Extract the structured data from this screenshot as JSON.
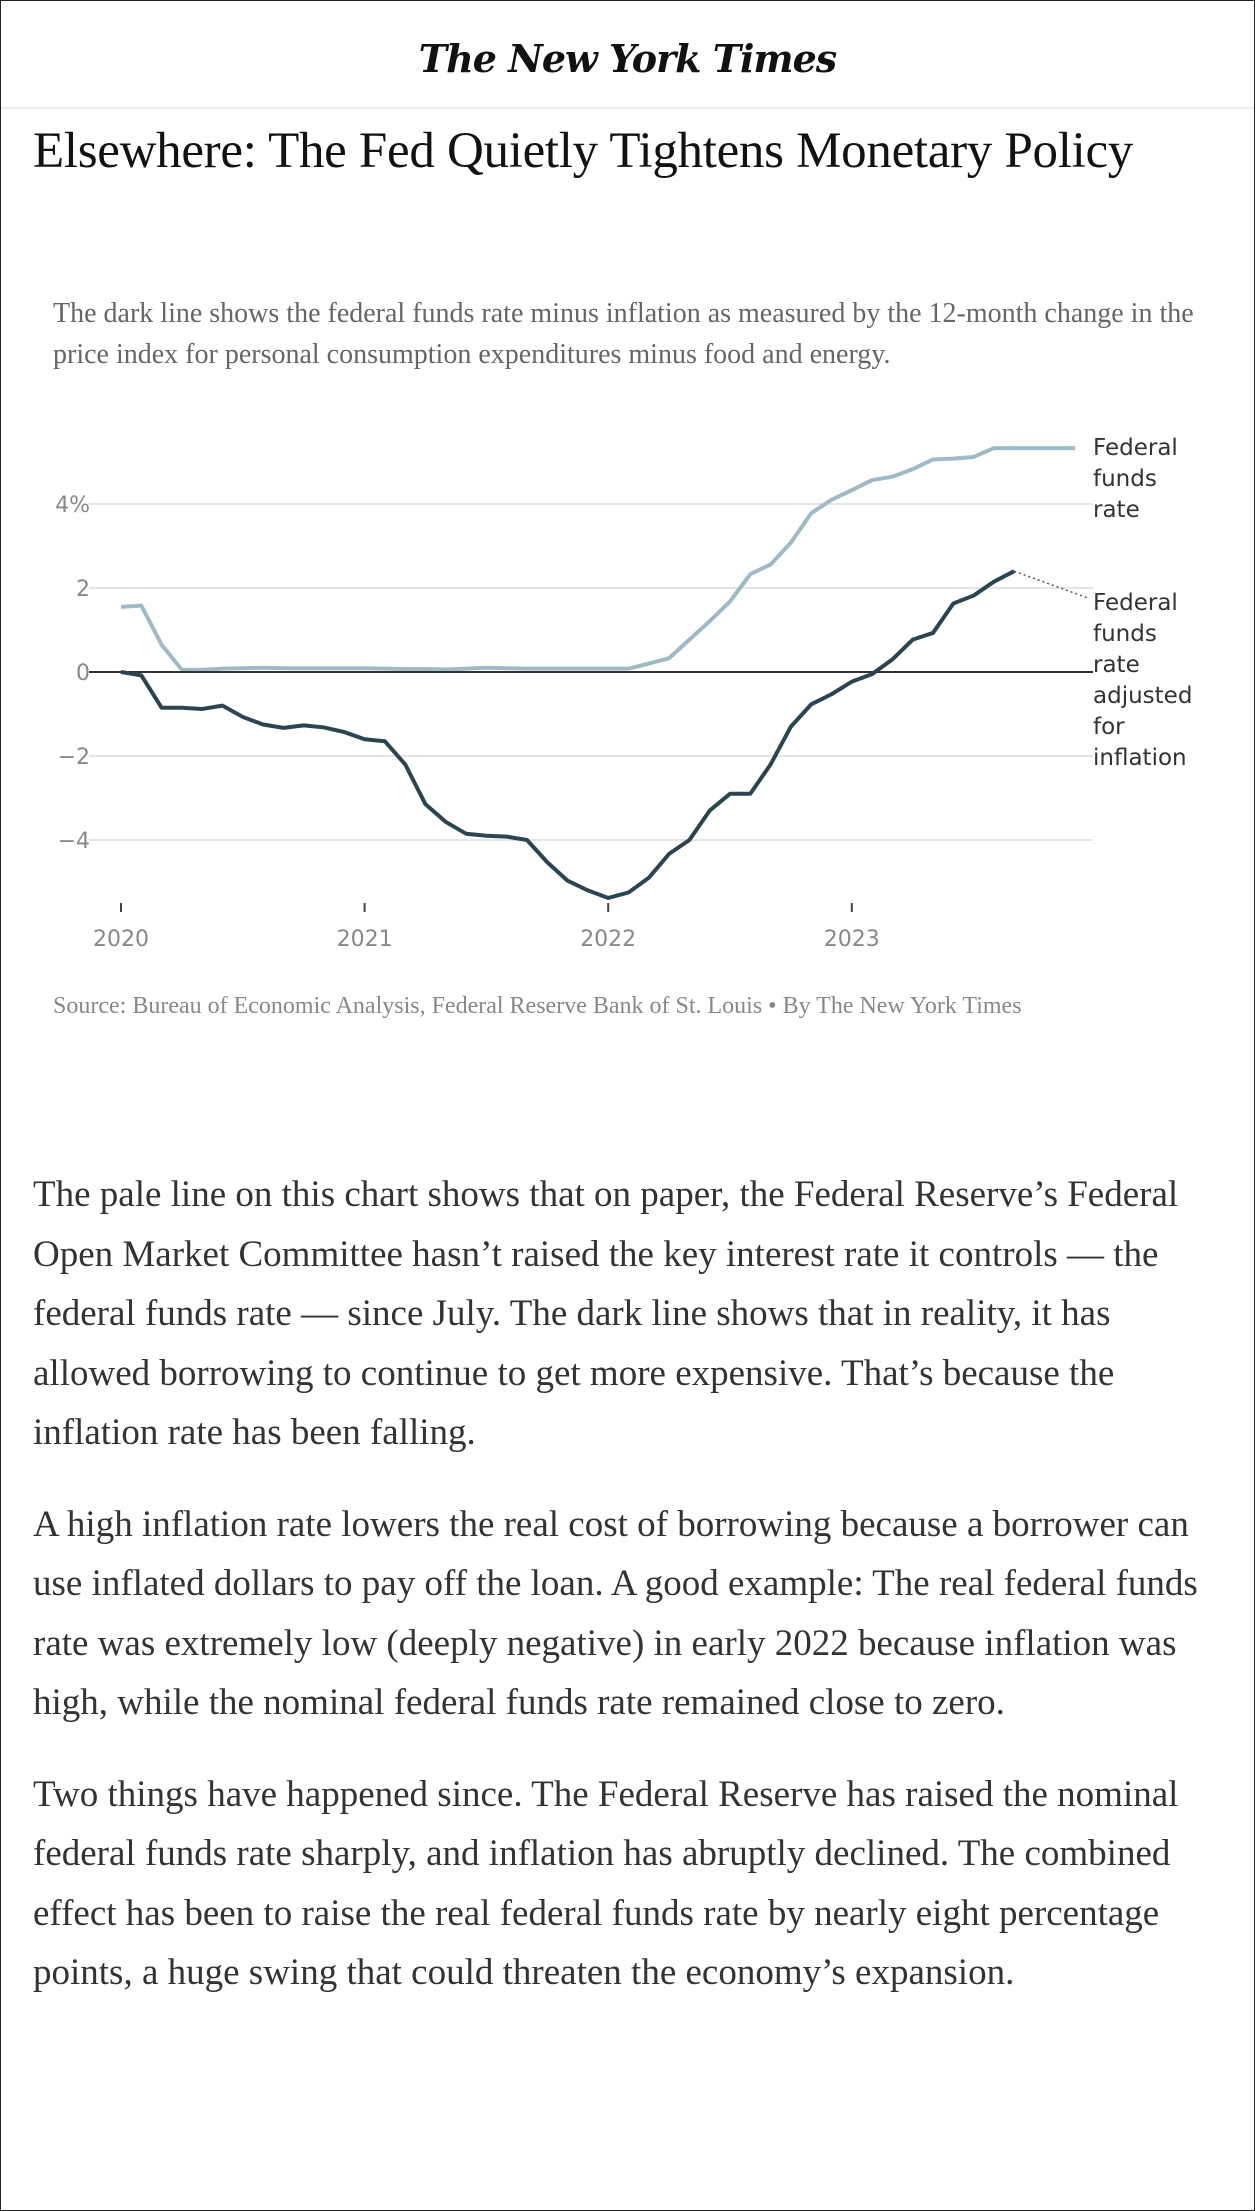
{
  "masthead": {
    "logo": "The New York Times"
  },
  "headline": "Elsewhere: The Fed Quietly Tightens Monetary Policy",
  "chart_note": "The dark line shows the federal funds rate minus inflation as measured by the 12-month change in the price index for personal consumption expenditures minus food and energy.",
  "source": "Source: Bureau of Economic Analysis, Federal Reserve Bank of St. Louis • By The New York Times",
  "article": {
    "paragraphs": [
      "The pale line on this chart shows that on paper, the Federal Reserve’s Federal Open Market Committee hasn’t raised the key interest rate it controls — the federal funds rate — since July. The dark line shows that in reality, it has allowed borrowing to continue to get more expensive. That’s because the inflation rate has been falling.",
      "A high inflation rate lowers the real cost of borrowing because a borrower can use inflated dollars to pay off the loan. A good example: The real federal funds rate was extremely low (deeply negative) in early 2022 because inflation was high, while the nominal federal funds rate remained close to zero.",
      "Two things have happened since. The Federal Reserve has raised the nominal federal funds rate sharply, and inflation has abruptly declined. The combined effect has been to raise the real federal funds rate by nearly eight percentage points, a huge swing that could threaten the economy’s expansion."
    ]
  },
  "colors": {
    "nominal": "#9fbac6",
    "real": "#2b4550",
    "zero": "#333333",
    "grid": "#e5e5e5"
  },
  "chart_data": {
    "type": "line",
    "title": "",
    "xlabel": "",
    "ylabel": "",
    "x_start": "2020-01",
    "x_step": "month",
    "x_ticks": [
      "2020",
      "2021",
      "2022",
      "2023"
    ],
    "y_ticks": [
      {
        "value": 4,
        "label": "4%"
      },
      {
        "value": 2,
        "label": "2"
      },
      {
        "value": 0,
        "label": "0"
      },
      {
        "value": -2,
        "label": "−2"
      },
      {
        "value": -4,
        "label": "−4"
      }
    ],
    "ylim": [
      -5.6,
      5.5
    ],
    "grid": true,
    "series": [
      {
        "name": "Federal funds rate",
        "label_lines": [
          "Federal",
          "funds",
          "rate"
        ],
        "values": [
          1.55,
          1.58,
          0.65,
          0.05,
          0.05,
          0.08,
          0.09,
          0.1,
          0.09,
          0.09,
          0.09,
          0.09,
          0.09,
          0.08,
          0.07,
          0.07,
          0.06,
          0.08,
          0.1,
          0.09,
          0.08,
          0.08,
          0.08,
          0.08,
          0.08,
          0.08,
          0.2,
          0.33,
          0.77,
          1.21,
          1.68,
          2.33,
          2.56,
          3.08,
          3.78,
          4.1,
          4.33,
          4.57,
          4.65,
          4.83,
          5.06,
          5.08,
          5.12,
          5.33,
          5.33,
          5.33,
          5.33,
          5.33
        ]
      },
      {
        "name": "Federal funds rate adjusted for inflation",
        "label_lines": [
          "Federal",
          "funds",
          "rate",
          "adjusted",
          "for",
          "inflation"
        ],
        "values": [
          0.0,
          -0.08,
          -0.85,
          -0.85,
          -0.88,
          -0.8,
          -1.07,
          -1.25,
          -1.33,
          -1.27,
          -1.32,
          -1.43,
          -1.6,
          -1.65,
          -2.2,
          -3.15,
          -3.57,
          -3.85,
          -3.9,
          -3.92,
          -4.0,
          -4.53,
          -4.97,
          -5.2,
          -5.38,
          -5.25,
          -4.9,
          -4.33,
          -4.0,
          -3.3,
          -2.9,
          -2.9,
          -2.2,
          -1.3,
          -0.77,
          -0.53,
          -0.23,
          -0.05,
          0.3,
          0.77,
          0.93,
          1.63,
          1.82,
          2.15,
          2.4
        ]
      }
    ]
  }
}
